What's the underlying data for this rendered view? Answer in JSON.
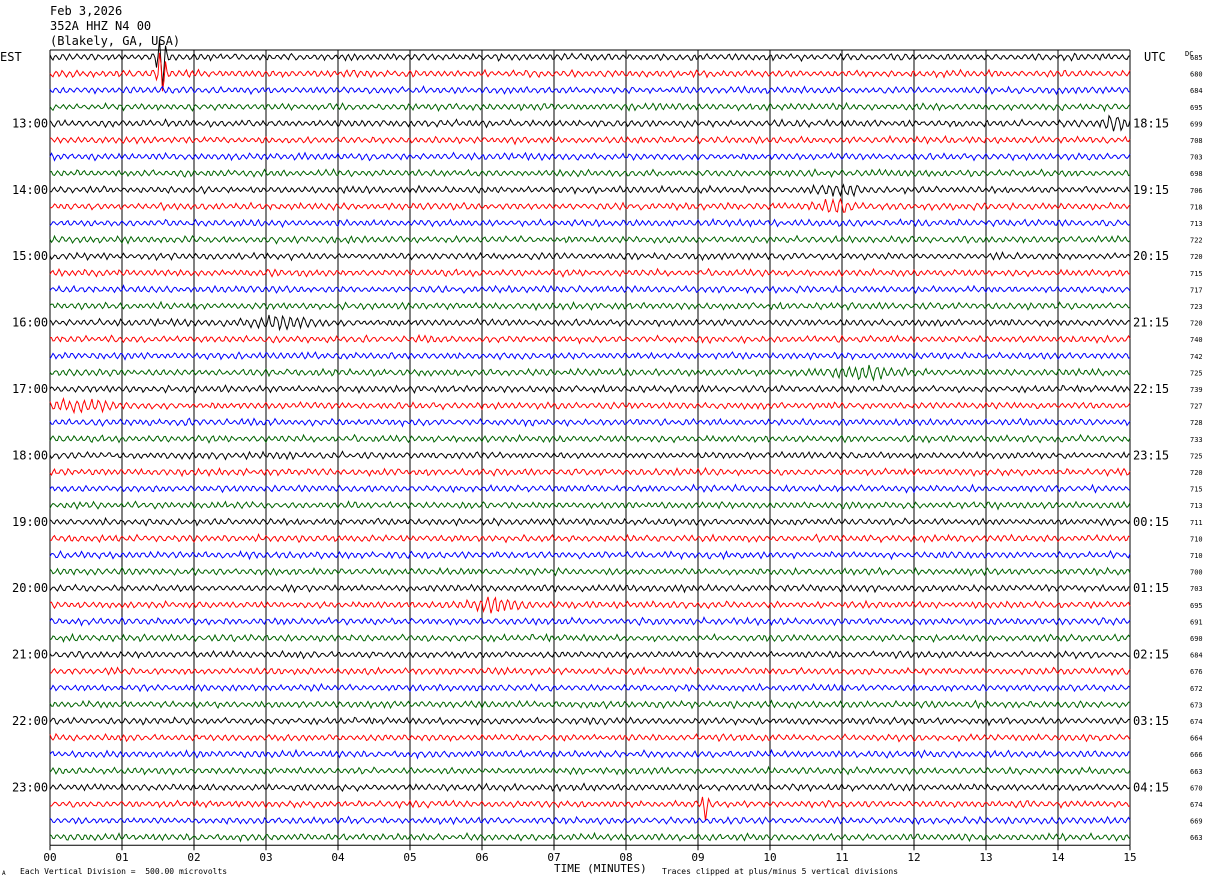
{
  "header": {
    "date": "Feb 3,2026",
    "station": "352A HHZ N4 00",
    "location": "(Blakely, GA, USA)"
  },
  "left_tz": "EST",
  "right_tz": "UTC",
  "dc_header": "DC",
  "footer": {
    "scale_note": "Each Vertical Division =  500.00 microvolts",
    "clip_note": "Traces clipped at plus/minus 5 vertical divisions",
    "corner_mark": "A"
  },
  "colors": {
    "black": "#000000",
    "red": "#ff0000",
    "blue": "#0000ff",
    "green": "#006400",
    "grid": "#000000"
  },
  "chart_data": {
    "type": "line",
    "title": "Feb 3,2026",
    "xlabel": "TIME (MINUTES)",
    "ylabel": "",
    "xlim": [
      0,
      15
    ],
    "x_ticks": [
      "00",
      "01",
      "02",
      "03",
      "04",
      "05",
      "06",
      "07",
      "08",
      "09",
      "10",
      "11",
      "12",
      "13",
      "14",
      "15"
    ],
    "trace_colors": [
      "black",
      "red",
      "blue",
      "green"
    ],
    "left_hour_labels": [
      "13:00",
      "14:00",
      "15:00",
      "16:00",
      "17:00",
      "18:00",
      "19:00",
      "20:00",
      "21:00",
      "22:00",
      "23:00"
    ],
    "right_hour_labels": [
      "18:15",
      "19:15",
      "20:15",
      "21:15",
      "22:15",
      "23:15",
      "00:15",
      "01:15",
      "02:15",
      "03:15",
      "04:15"
    ],
    "dc_offsets": [
      685,
      680,
      684,
      695,
      699,
      708,
      703,
      698,
      706,
      718,
      713,
      722,
      720,
      715,
      717,
      723,
      720,
      740,
      742,
      725,
      739,
      727,
      728,
      733,
      725,
      720,
      715,
      713,
      711,
      710,
      710,
      700,
      703,
      695,
      691,
      690,
      684,
      676,
      672,
      673,
      674,
      664,
      666,
      663,
      670,
      674,
      669,
      663
    ],
    "events": [
      {
        "trace": 0,
        "minute": 1.55,
        "amplitude": "large spike, clipped"
      },
      {
        "trace": 1,
        "minute": 1.55,
        "amplitude": "large"
      },
      {
        "trace": 4,
        "minute": 14.8,
        "amplitude": "moderate"
      },
      {
        "trace": 8,
        "minute": 10.95,
        "amplitude": "moderate"
      },
      {
        "trace": 9,
        "minute": 10.9,
        "amplitude": "moderate"
      },
      {
        "trace": 16,
        "minute": 3.2,
        "amplitude": "burst"
      },
      {
        "trace": 19,
        "minute": 11.3,
        "amplitude": "burst"
      },
      {
        "trace": 21,
        "minute": 0.4,
        "amplitude": "burst"
      },
      {
        "trace": 33,
        "minute": 6.2,
        "amplitude": "burst"
      },
      {
        "trace": 45,
        "minute": 9.1,
        "amplitude": "spike"
      }
    ]
  }
}
